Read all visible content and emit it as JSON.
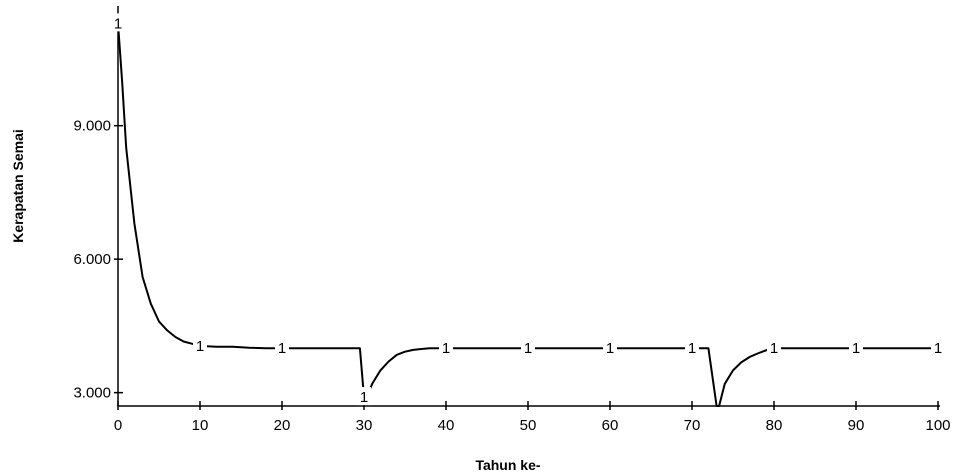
{
  "chart_data": {
    "type": "line",
    "title": "",
    "xlabel": "Tahun ke-",
    "ylabel": "Kerapatan Semai",
    "xlim": [
      0,
      100
    ],
    "ylim": [
      2700,
      11600
    ],
    "x_ticks": [
      0,
      10,
      20,
      30,
      40,
      50,
      60,
      70,
      80,
      90,
      100
    ],
    "x_tick_labels": [
      "0",
      "10",
      "20",
      "30",
      "40",
      "50",
      "60",
      "70",
      "80",
      "90",
      "100"
    ],
    "y_ticks": [
      3000,
      6000,
      9000
    ],
    "y_tick_labels": [
      "3.000",
      "6.000",
      "9.000"
    ],
    "grid": false,
    "legend": "none",
    "line_color": "#000000",
    "marker_text": "1",
    "marker_x": [
      0,
      10,
      20,
      30,
      40,
      50,
      60,
      70,
      80,
      90,
      100
    ],
    "series": [
      {
        "x": [
          0,
          0.5,
          1,
          2,
          3,
          4,
          5,
          6,
          7,
          8,
          9,
          10,
          12,
          14,
          16,
          18,
          20,
          22,
          24,
          26,
          28,
          29.5,
          30,
          30.3,
          31,
          32,
          33,
          34,
          35,
          36,
          37,
          38,
          40,
          45,
          50,
          55,
          60,
          65,
          70,
          72,
          73,
          73.3,
          74,
          75,
          76,
          77,
          78,
          79,
          80,
          85,
          90,
          95,
          100
        ],
        "y": [
          11300,
          10000,
          8500,
          6800,
          5600,
          5000,
          4600,
          4400,
          4250,
          4150,
          4100,
          4050,
          4030,
          4030,
          4010,
          4000,
          4000,
          4000,
          4000,
          4000,
          4000,
          4000,
          2900,
          2900,
          3200,
          3500,
          3700,
          3850,
          3920,
          3960,
          3980,
          4000,
          4000,
          4000,
          4000,
          4000,
          4000,
          4000,
          4000,
          4000,
          2700,
          2700,
          3200,
          3500,
          3680,
          3800,
          3880,
          3950,
          4000,
          4000,
          4000,
          4000,
          4000
        ]
      }
    ]
  }
}
